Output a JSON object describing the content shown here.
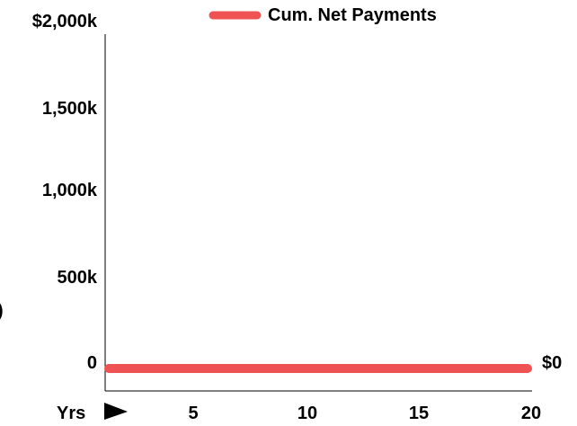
{
  "chart_data": {
    "type": "line",
    "legend": {
      "position": "top-center"
    },
    "ylim": [
      0,
      2000000
    ],
    "yticks": [
      {
        "value": 2000000,
        "label": "$2,000k"
      },
      {
        "value": 1500000,
        "label": "1,500k"
      },
      {
        "value": 1000000,
        "label": "1,000k"
      },
      {
        "value": 500000,
        "label": "500k"
      },
      {
        "value": 0,
        "label": "0"
      }
    ],
    "xlim": [
      0,
      20
    ],
    "xlabel": "Yrs",
    "xticks": [
      {
        "value": 5,
        "label": "5"
      },
      {
        "value": 10,
        "label": "10"
      },
      {
        "value": 15,
        "label": "15"
      },
      {
        "value": 20,
        "label": "20"
      }
    ],
    "series": [
      {
        "name": "Cum. Net Payments",
        "color": "#ee5253",
        "x": [
          0,
          20
        ],
        "values": [
          0,
          0
        ],
        "end_label": "$0"
      }
    ],
    "grid": false,
    "left_edge_glyph": ")"
  }
}
